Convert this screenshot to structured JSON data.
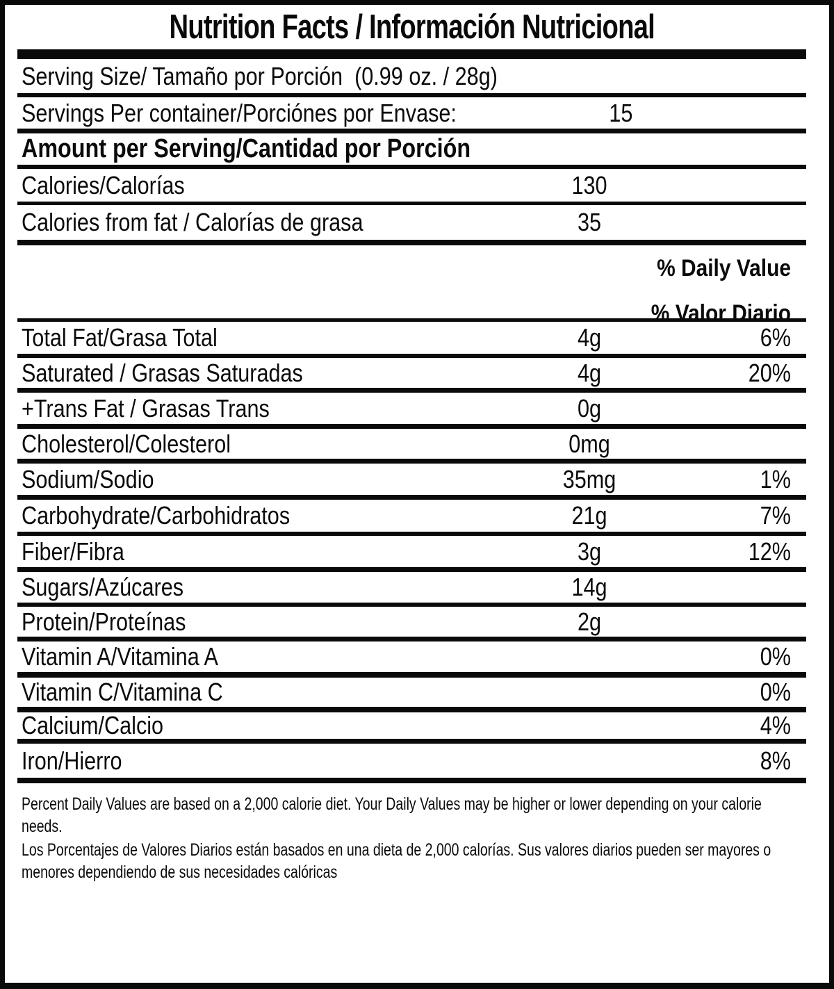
{
  "colors": {
    "ink": "#0a0a0a",
    "background": "#ffffff"
  },
  "header": {
    "title": "Nutrition Facts / Información Nutricional"
  },
  "serving": {
    "serving_size_label": "Serving Size/ Tamaño por Porción  (0.99 oz. / 28g)",
    "servings_per_container_label": "Servings Per container/Porciónes por Envase:",
    "servings_per_container_value": "15",
    "amount_per_serving_label": "Amount per Serving/Cantidad por Porción"
  },
  "calories": {
    "calories_label": "Calories/Calorías",
    "calories_value": "130",
    "calories_from_fat_label": "Calories from fat / Calorías de grasa",
    "calories_from_fat_value": "35"
  },
  "daily_value_header": {
    "line1": "% Daily Value",
    "line2": "% Valor Diario"
  },
  "nutrients": [
    {
      "label": "Total Fat/Grasa Total",
      "value": "4g",
      "percent": "6%"
    },
    {
      "label": "Saturated / Grasas Saturadas",
      "value": "4g",
      "percent": "20%"
    },
    {
      "label": "+Trans Fat / Grasas Trans",
      "value": "0g",
      "percent": ""
    },
    {
      "label": "Cholesterol/Colesterol",
      "value": "0mg",
      "percent": ""
    },
    {
      "label": "Sodium/Sodio",
      "value": "35mg",
      "percent": "1%"
    },
    {
      "label": "Carbohydrate/Carbohidratos",
      "value": "21g",
      "percent": "7%"
    },
    {
      "label": "Fiber/Fibra",
      "value": "3g",
      "percent": "12%"
    },
    {
      "label": "Sugars/Azúcares",
      "value": "14g",
      "percent": ""
    },
    {
      "label": "Protein/Proteínas",
      "value": "2g",
      "percent": ""
    },
    {
      "label": "Vitamin A/Vitamina A",
      "value": "",
      "percent": "0%"
    },
    {
      "label": "Vitamin C/Vitamina C",
      "value": "",
      "percent": "0%"
    },
    {
      "label": "Calcium/Calcio",
      "value": "",
      "percent": "4%"
    },
    {
      "label": "Iron/Hierro",
      "value": "",
      "percent": "8%"
    }
  ],
  "footnotes": {
    "english": "Percent Daily Values are based on a 2,000 calorie diet. Your Daily Values may be higher or lower depending on your calorie needs.",
    "spanish": "Los Porcentajes de Valores Diarios están basados en una dieta de 2,000 calorías. Sus valores diarios pueden ser mayores o menores dependiendo de sus necesidades calóricas"
  }
}
